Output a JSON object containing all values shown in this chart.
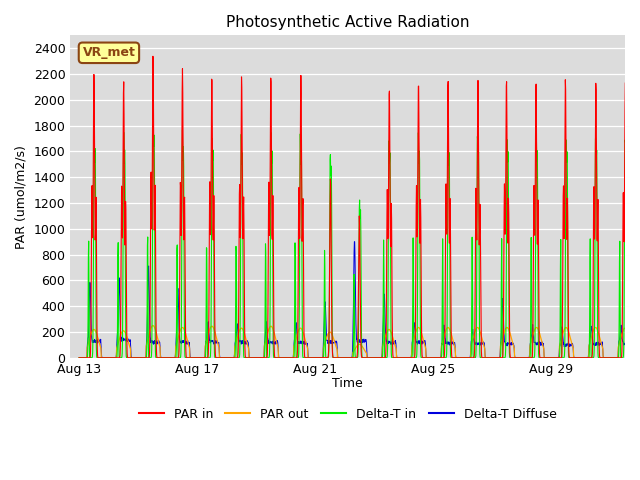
{
  "title": "Photosynthetic Active Radiation",
  "ylabel": "PAR (umol/m2/s)",
  "xlabel": "Time",
  "ylim": [
    0,
    2500
  ],
  "yticks": [
    0,
    200,
    400,
    600,
    800,
    1000,
    1200,
    1400,
    1600,
    1800,
    2000,
    2200,
    2400
  ],
  "xtick_labels": [
    "Aug 13",
    "Aug 17",
    "Aug 21",
    "Aug 25",
    "Aug 29"
  ],
  "xtick_days": [
    0,
    4,
    8,
    12,
    16
  ],
  "bg_color": "#dcdcdc",
  "fig_color": "#ffffff",
  "line_colors": {
    "PAR in": "#ff0000",
    "PAR out": "#ffa500",
    "Delta-T in": "#00ee00",
    "Delta-T Diffuse": "#0000dd"
  },
  "label_box_text": "VR_met",
  "label_box_bg": "#ffff99",
  "label_box_border": "#8B4513",
  "n_days": 19,
  "hours_per_day": 24,
  "samples_per_hour": 4
}
